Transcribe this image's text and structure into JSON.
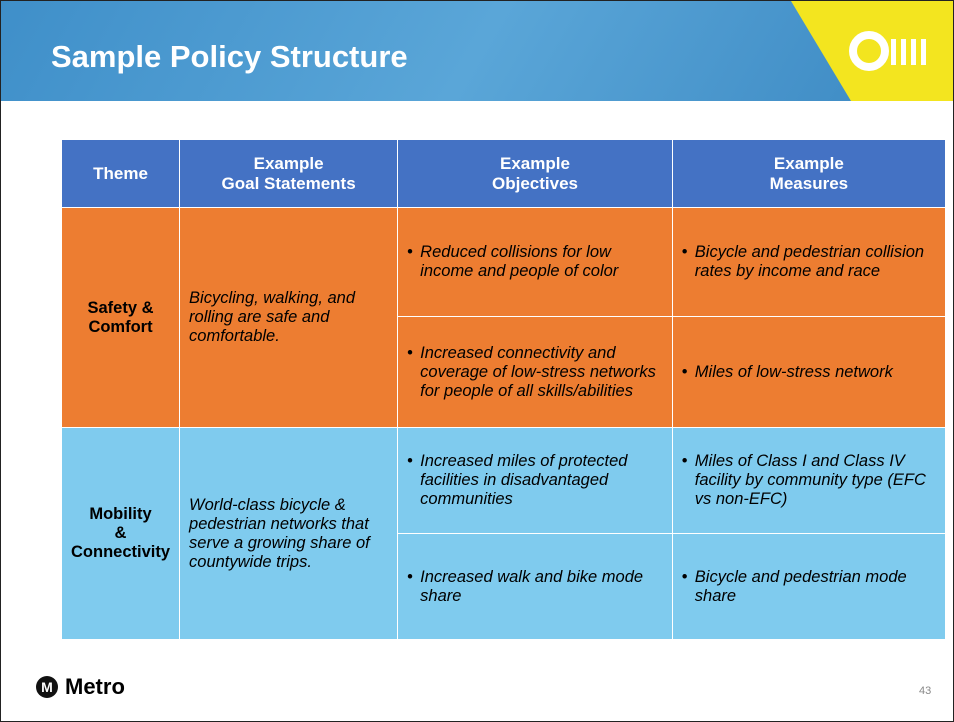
{
  "header": {
    "title": "Sample Policy Structure"
  },
  "table": {
    "headers": [
      "Theme",
      "Example\nGoal Statements",
      "Example\nObjectives",
      "Example\nMeasures"
    ],
    "groups": [
      {
        "theme": "Safety &\nComfort",
        "goal": "Bicycling, walking, and rolling are safe and comfortable.",
        "items": [
          {
            "objective": "Reduced collisions for low income and people of color",
            "measure": "Bicycle and pedestrian collision rates by income and race"
          },
          {
            "objective": "Increased connectivity and coverage of low-stress networks for people of all skills/abilities",
            "measure": "Miles of low-stress network"
          }
        ]
      },
      {
        "theme": "Mobility\n&\nConnectivity",
        "goal": "World-class bicycle & pedestrian networks that serve a growing share of countywide trips.",
        "items": [
          {
            "objective": "Increased miles of protected facilities in disadvantaged communities",
            "measure": "Miles of Class I and Class IV facility by community type (EFC vs non-EFC)"
          },
          {
            "objective": "Increased walk and bike mode share",
            "measure": "Bicycle and pedestrian mode share"
          }
        ]
      }
    ]
  },
  "footer": {
    "logo": "Metro",
    "page_number": "43"
  }
}
